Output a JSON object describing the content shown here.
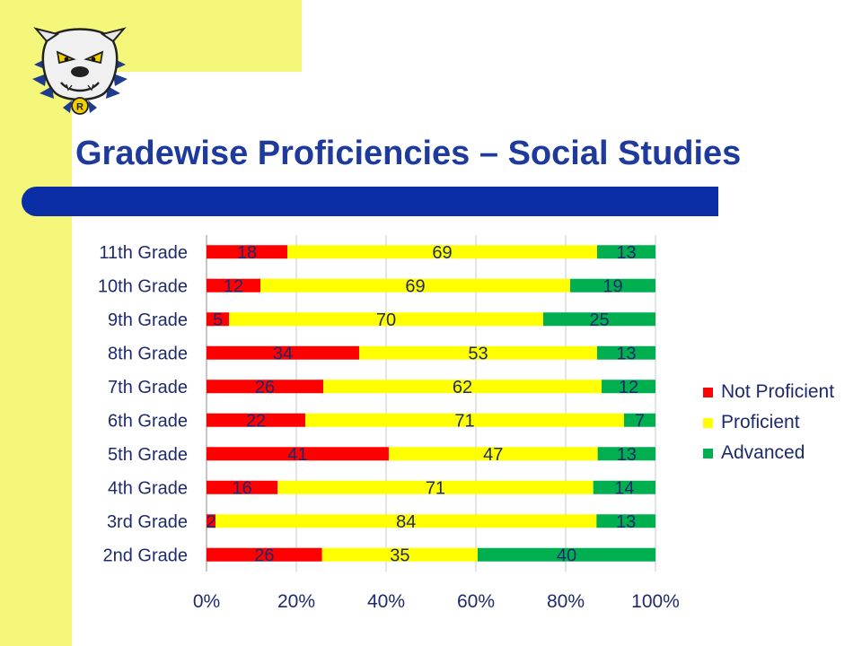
{
  "slide": {
    "title": "Gradewise Proficiencies – Social Studies",
    "background_color": "#ffffff",
    "accent_yellow": "#f5f77a",
    "accent_blue": "#0b2ea6",
    "title_color": "#1e3a9c",
    "logo_icon": "bulldog-mascot-logo"
  },
  "chart_data": {
    "type": "bar",
    "orientation": "horizontal",
    "stacked": "percent",
    "categories": [
      "11th Grade",
      "10th Grade",
      "9th Grade",
      "8th Grade",
      "7th Grade",
      "6th Grade",
      "5th Grade",
      "4th Grade",
      "3rd Grade",
      "2nd Grade"
    ],
    "series": [
      {
        "name": "Not Proficient",
        "color": "#ff0000",
        "values": [
          18,
          12,
          5,
          34,
          26,
          22,
          41,
          16,
          2,
          26
        ]
      },
      {
        "name": "Proficient",
        "color": "#ffff00",
        "values": [
          69,
          69,
          70,
          53,
          62,
          71,
          47,
          71,
          84,
          35
        ]
      },
      {
        "name": "Advanced",
        "color": "#00b050",
        "values": [
          13,
          19,
          25,
          13,
          12,
          7,
          13,
          14,
          13,
          40
        ]
      }
    ],
    "xticks": [
      "0%",
      "20%",
      "40%",
      "60%",
      "80%",
      "100%"
    ],
    "xlim": [
      0,
      100
    ],
    "grid": true,
    "legend": "right"
  }
}
